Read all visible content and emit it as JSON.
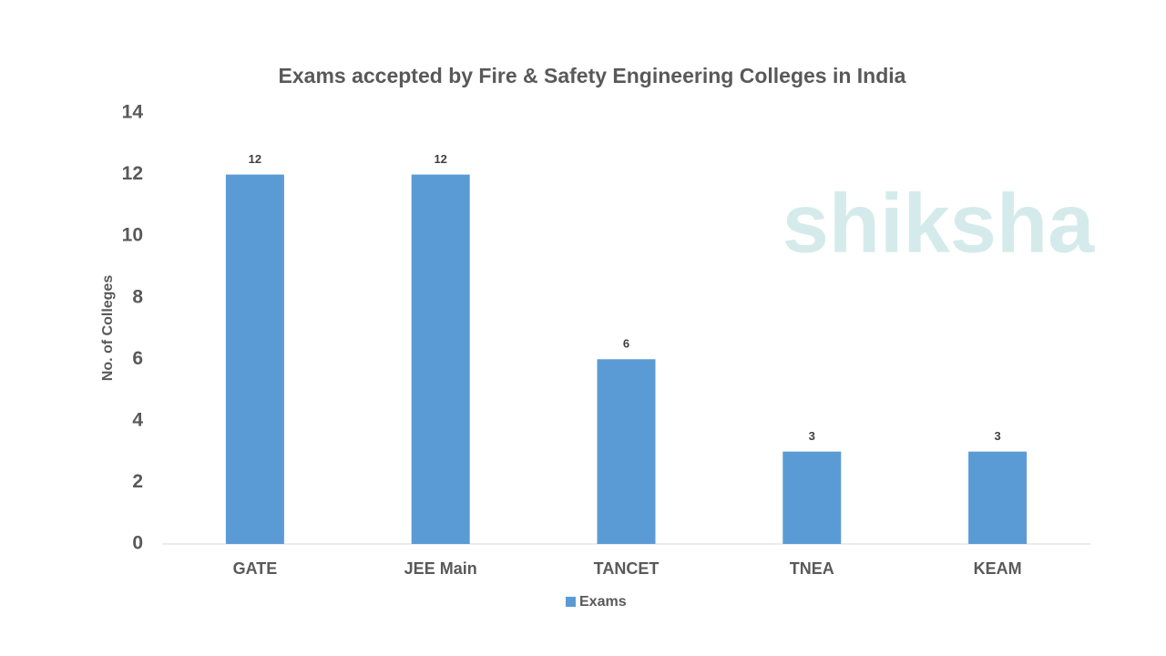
{
  "chart_data": {
    "type": "bar",
    "title": "Exams accepted by Fire & Safety Engineering Colleges in India",
    "ylabel": "No. of Colleges",
    "watermark": "shiksha",
    "categories": [
      "GATE",
      "JEE Main",
      "TANCET",
      "TNEA",
      "KEAM"
    ],
    "series": [
      {
        "name": "Exams",
        "color": "#5b9bd5",
        "values": [
          12,
          12,
          6,
          3,
          3
        ]
      }
    ],
    "ylim": [
      0,
      14
    ],
    "yticks": [
      0,
      2,
      4,
      6,
      8,
      10,
      12,
      14
    ],
    "grid": false,
    "legend": "bottom"
  }
}
